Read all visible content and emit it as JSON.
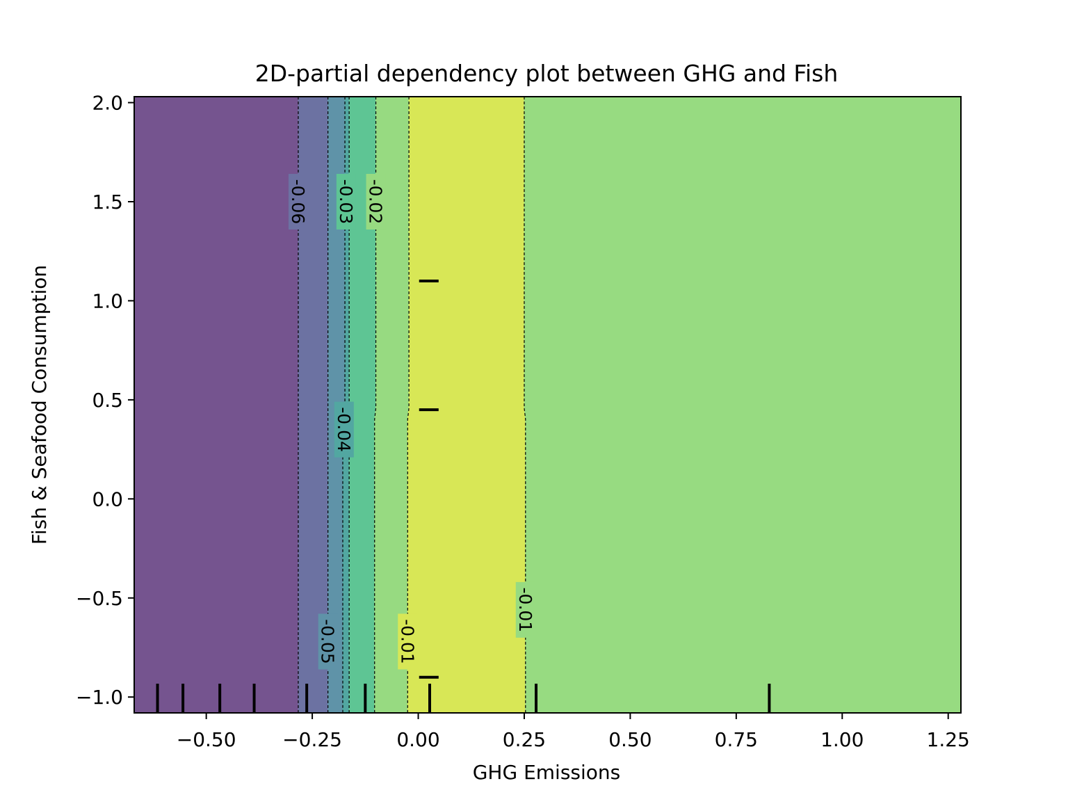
{
  "chart_data": {
    "type": "heatmap",
    "subtype": "filled-contour",
    "title": "2D-partial dependency plot between GHG and Fish",
    "xlabel": "GHG Emissions",
    "ylabel": "Fish & Seafood Consumption",
    "xlim": [
      -0.67,
      1.28
    ],
    "ylim": [
      -1.08,
      2.03
    ],
    "x_ticks": [
      -0.5,
      -0.25,
      0.0,
      0.25,
      0.5,
      0.75,
      1.0,
      1.25
    ],
    "x_tick_labels": [
      "−0.50",
      "−0.25",
      "0.00",
      "0.25",
      "0.50",
      "0.75",
      "1.00",
      "1.25"
    ],
    "y_ticks": [
      -1.0,
      -0.5,
      0.0,
      0.5,
      1.0,
      1.5,
      2.0
    ],
    "y_tick_labels": [
      "−1.0",
      "−0.5",
      "0.0",
      "0.5",
      "1.0",
      "1.5",
      "2.0"
    ],
    "grid": false,
    "bands": [
      {
        "x0": -0.67,
        "x1": -0.283,
        "x1_low": -0.283,
        "color": "#75548f"
      },
      {
        "x0": -0.283,
        "x1": -0.213,
        "x1_low": -0.213,
        "color": "#6c72a2"
      },
      {
        "x0": -0.213,
        "x1": -0.173,
        "x1_low": -0.178,
        "color": "#5f93a8"
      },
      {
        "x0": -0.173,
        "x1": -0.163,
        "x1_low": -0.163,
        "color": "#52a7a1"
      },
      {
        "x0": -0.163,
        "x1": -0.1,
        "x1_low": -0.103,
        "color": "#5ec594"
      },
      {
        "x0": -0.1,
        "x1": -0.022,
        "x1_low": -0.025,
        "color": "#97da81"
      },
      {
        "x0": -0.022,
        "x1": 0.25,
        "x1_low": 0.253,
        "color": "#d8e756"
      },
      {
        "x0": 0.25,
        "x1": 1.28,
        "x1_low": 1.28,
        "color": "#97db81"
      }
    ],
    "band_step_y": 0.43,
    "contour_levels": [
      {
        "x": -0.283,
        "x_low": -0.283
      },
      {
        "x": -0.213,
        "x_low": -0.213
      },
      {
        "x": -0.173,
        "x_low": -0.178
      },
      {
        "x": -0.163,
        "x_low": -0.163
      },
      {
        "x": -0.1,
        "x_low": -0.103
      },
      {
        "x": -0.022,
        "x_low": -0.025
      },
      {
        "x": 0.25,
        "x_low": 0.253
      }
    ],
    "contour_labels": [
      {
        "text": "-0.06",
        "x": -0.283,
        "y": 1.5
      },
      {
        "text": "-0.03",
        "x": -0.17,
        "y": 1.5
      },
      {
        "text": "-0.02",
        "x": -0.1,
        "y": 1.5
      },
      {
        "text": "-0.04",
        "x": -0.175,
        "y": 0.35
      },
      {
        "text": "-0.05",
        "x": -0.213,
        "y": -0.72
      },
      {
        "text": "-0.01",
        "x": -0.025,
        "y": -0.72
      },
      {
        "text": "-0.01",
        "x": 0.253,
        "y": -0.56
      }
    ],
    "x_rug": [
      -0.615,
      -0.555,
      -0.468,
      -0.387,
      -0.263,
      -0.125,
      0.027,
      0.278,
      0.828
    ],
    "y_rug": [
      1.1,
      0.45,
      -0.9
    ],
    "y_rug_x": [
      0.002,
      0.048
    ]
  }
}
